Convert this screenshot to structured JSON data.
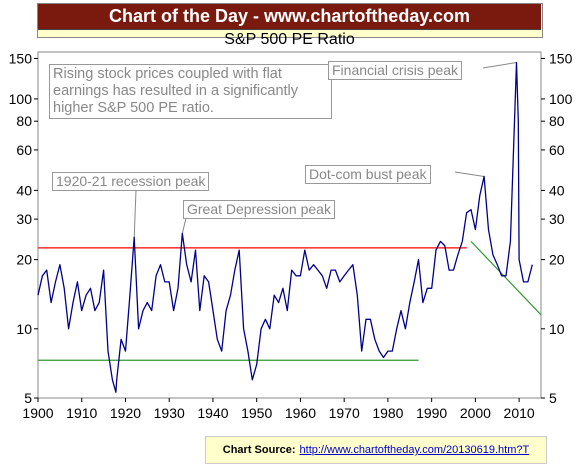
{
  "header": {
    "banner": "Chart of the Day - www.chartoftheday.com"
  },
  "chart_data": {
    "type": "line",
    "title": "S&P 500 PE Ratio",
    "y_scale": "log",
    "ylim": [
      5,
      160
    ],
    "xlim": [
      1900,
      2015
    ],
    "x_ticks": [
      "1900",
      "1910",
      "1920",
      "1930",
      "1940",
      "1950",
      "1960",
      "1970",
      "1980",
      "1990",
      "2000",
      "2010"
    ],
    "y_ticks": [
      "5",
      "10",
      "20",
      "30",
      "40",
      "60",
      "80",
      "100",
      "150"
    ],
    "note": "Rising stock prices coupled with flat earnings has resulted in a significantly higher S&P 500 PE ratio.",
    "annotations": [
      {
        "label": "1920-21 recession peak",
        "x": 1922,
        "y": 25
      },
      {
        "label": "Great Depression peak",
        "x": 1933,
        "y": 26
      },
      {
        "label": "Financial crisis peak",
        "x": 2009.4,
        "y": 144
      },
      {
        "label": "Dot-com bust peak",
        "x": 2002,
        "y": 46
      }
    ],
    "reference_lines": [
      {
        "type": "horizontal",
        "y": 22.5,
        "x_from": 1900,
        "x_to": 1998,
        "color": "#ff0000"
      },
      {
        "type": "horizontal",
        "y": 7.3,
        "x_from": 1900,
        "x_to": 1987,
        "color": "#339933"
      },
      {
        "type": "trend",
        "from": [
          1999,
          24
        ],
        "to": [
          2015,
          11.5
        ],
        "color": "#339933"
      }
    ],
    "series": [
      {
        "color": "#00008b",
        "points": [
          [
            1900,
            14
          ],
          [
            1901,
            17
          ],
          [
            1902,
            18
          ],
          [
            1903,
            13
          ],
          [
            1904,
            16
          ],
          [
            1905,
            19
          ],
          [
            1906,
            15
          ],
          [
            1907,
            10
          ],
          [
            1908,
            13
          ],
          [
            1909,
            16
          ],
          [
            1910,
            12
          ],
          [
            1911,
            14
          ],
          [
            1912,
            15
          ],
          [
            1913,
            12
          ],
          [
            1914,
            13
          ],
          [
            1915,
            18
          ],
          [
            1916,
            8
          ],
          [
            1917,
            6
          ],
          [
            1917.8,
            5.3
          ],
          [
            1918,
            6
          ],
          [
            1919,
            9
          ],
          [
            1920,
            8
          ],
          [
            1921,
            14
          ],
          [
            1922,
            25
          ],
          [
            1923,
            10
          ],
          [
            1924,
            12
          ],
          [
            1925,
            13
          ],
          [
            1926,
            12
          ],
          [
            1927,
            17
          ],
          [
            1928,
            19
          ],
          [
            1929,
            16
          ],
          [
            1930,
            16
          ],
          [
            1931,
            12
          ],
          [
            1932,
            15
          ],
          [
            1933,
            26
          ],
          [
            1934,
            19
          ],
          [
            1935,
            16
          ],
          [
            1936,
            22
          ],
          [
            1937,
            12
          ],
          [
            1938,
            17
          ],
          [
            1939,
            16
          ],
          [
            1940,
            12
          ],
          [
            1941,
            9
          ],
          [
            1942,
            8
          ],
          [
            1943,
            12
          ],
          [
            1944,
            14
          ],
          [
            1945,
            18
          ],
          [
            1946,
            22
          ],
          [
            1947,
            10
          ],
          [
            1948,
            8
          ],
          [
            1949,
            6
          ],
          [
            1950,
            7
          ],
          [
            1951,
            10
          ],
          [
            1952,
            11
          ],
          [
            1953,
            10
          ],
          [
            1954,
            14
          ],
          [
            1955,
            13
          ],
          [
            1956,
            15
          ],
          [
            1957,
            12
          ],
          [
            1958,
            18
          ],
          [
            1959,
            17
          ],
          [
            1960,
            17
          ],
          [
            1961,
            22
          ],
          [
            1962,
            18
          ],
          [
            1963,
            19
          ],
          [
            1964,
            18
          ],
          [
            1965,
            17
          ],
          [
            1966,
            15
          ],
          [
            1967,
            18
          ],
          [
            1968,
            18
          ],
          [
            1969,
            16
          ],
          [
            1970,
            17
          ],
          [
            1971,
            18
          ],
          [
            1972,
            19
          ],
          [
            1973,
            14
          ],
          [
            1974,
            8
          ],
          [
            1975,
            11
          ],
          [
            1976,
            11
          ],
          [
            1977,
            9
          ],
          [
            1978,
            8
          ],
          [
            1979,
            7.5
          ],
          [
            1980,
            8
          ],
          [
            1981,
            8
          ],
          [
            1982,
            10
          ],
          [
            1983,
            12
          ],
          [
            1984,
            10
          ],
          [
            1985,
            13
          ],
          [
            1986,
            16
          ],
          [
            1987,
            20
          ],
          [
            1988,
            13
          ],
          [
            1989,
            15
          ],
          [
            1990,
            15
          ],
          [
            1991,
            22
          ],
          [
            1992,
            24
          ],
          [
            1993,
            23
          ],
          [
            1994,
            18
          ],
          [
            1995,
            18
          ],
          [
            1996,
            21
          ],
          [
            1997,
            24
          ],
          [
            1998,
            32
          ],
          [
            1999,
            33
          ],
          [
            2000,
            27
          ],
          [
            2001,
            38
          ],
          [
            2002,
            46
          ],
          [
            2003,
            27
          ],
          [
            2004,
            21
          ],
          [
            2005,
            19
          ],
          [
            2006,
            17
          ],
          [
            2007,
            17
          ],
          [
            2008,
            24
          ],
          [
            2009.4,
            144
          ],
          [
            2009.8,
            80
          ],
          [
            2010,
            20
          ],
          [
            2011,
            16
          ],
          [
            2012,
            16
          ],
          [
            2013,
            19
          ]
        ]
      }
    ]
  },
  "footer": {
    "source_label": "Chart Source:",
    "source_url": "http://www.chartoftheday.com/20130619.htm?T"
  }
}
